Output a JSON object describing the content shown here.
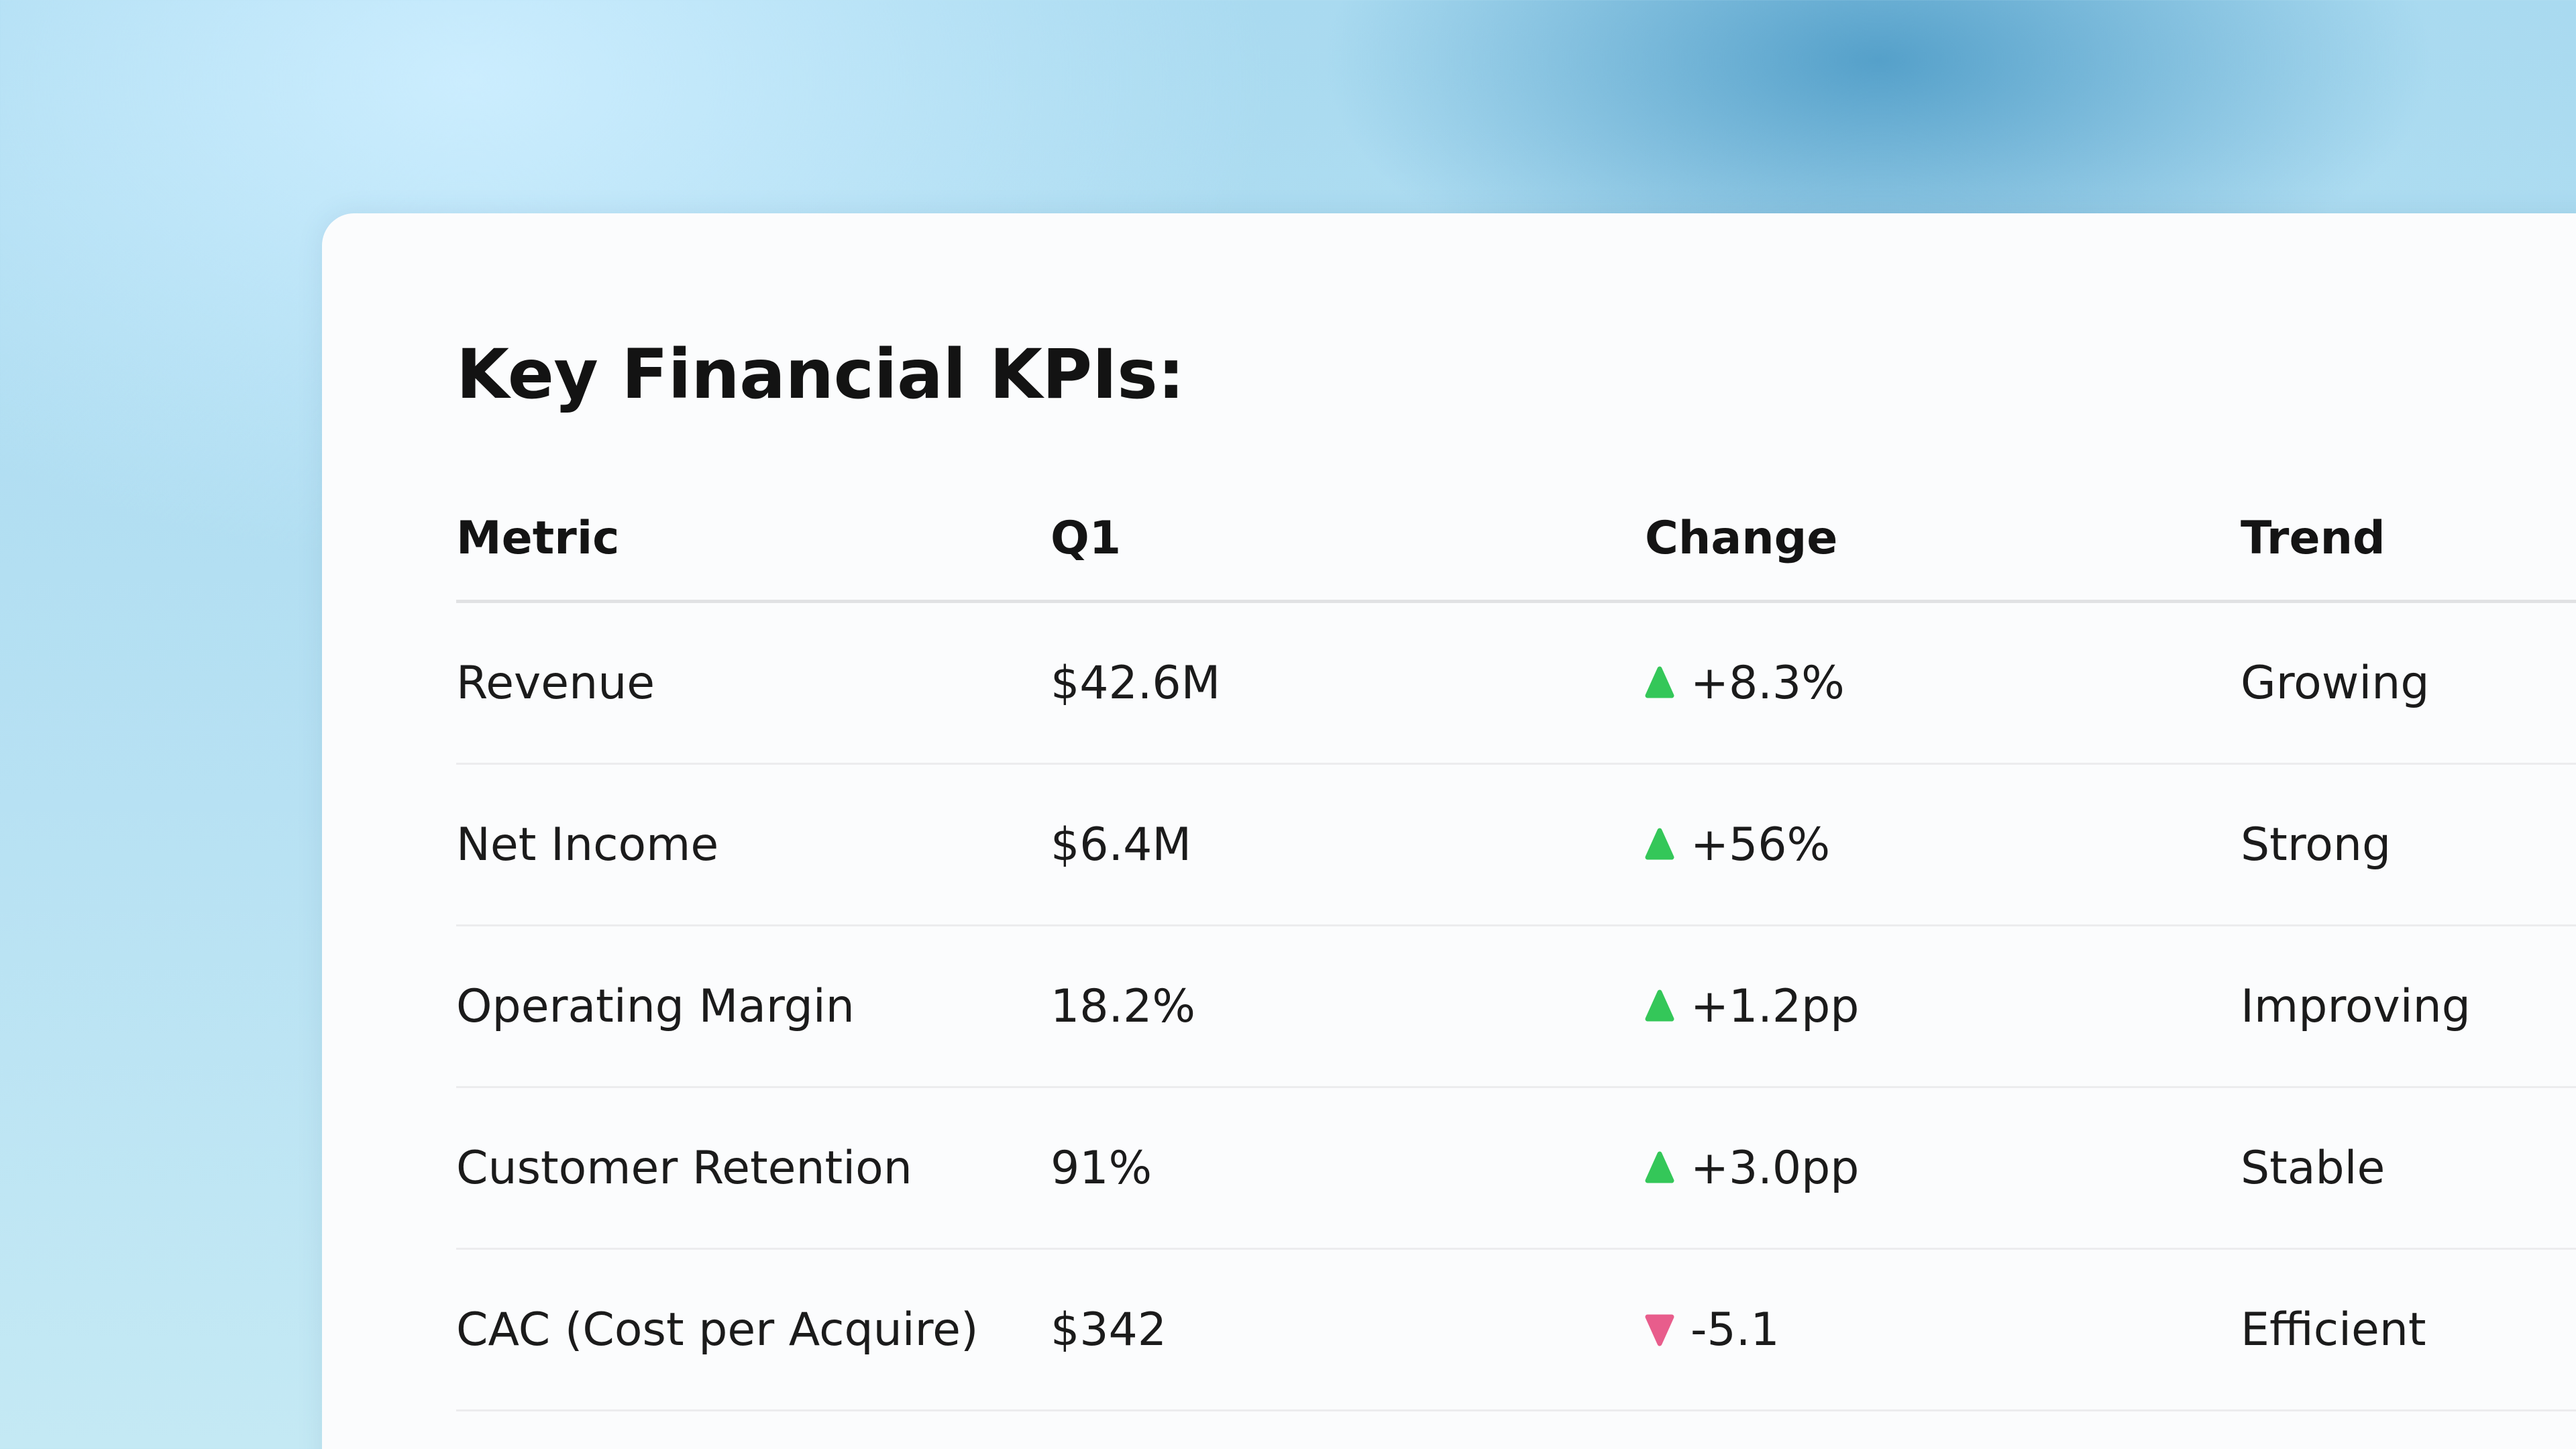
{
  "title": "Key Financial KPIs:",
  "colors": {
    "up": "#34c759",
    "down": "#e85d8c"
  },
  "table": {
    "headers": {
      "metric": "Metric",
      "q1": "Q1",
      "change": "Change",
      "trend": "Trend"
    },
    "rows": [
      {
        "metric": "Revenue",
        "q1": "$42.6M",
        "change": "+8.3%",
        "direction": "up",
        "icon": "triangle-up-icon",
        "trend": "Growing"
      },
      {
        "metric": "Net Income",
        "q1": "$6.4M",
        "change": "+56%",
        "direction": "up",
        "icon": "triangle-up-icon",
        "trend": "Strong"
      },
      {
        "metric": "Operating Margin",
        "q1": "18.2%",
        "change": "+1.2pp",
        "direction": "up",
        "icon": "triangle-up-icon",
        "trend": "Improving"
      },
      {
        "metric": "Customer Retention",
        "q1": "91%",
        "change": "+3.0pp",
        "direction": "up",
        "icon": "triangle-up-icon",
        "trend": "Stable"
      },
      {
        "metric": "CAC (Cost per Acquire)",
        "q1": "$342",
        "change": "-5.1",
        "direction": "down",
        "icon": "triangle-down-icon",
        "trend": "Efficient"
      }
    ]
  }
}
